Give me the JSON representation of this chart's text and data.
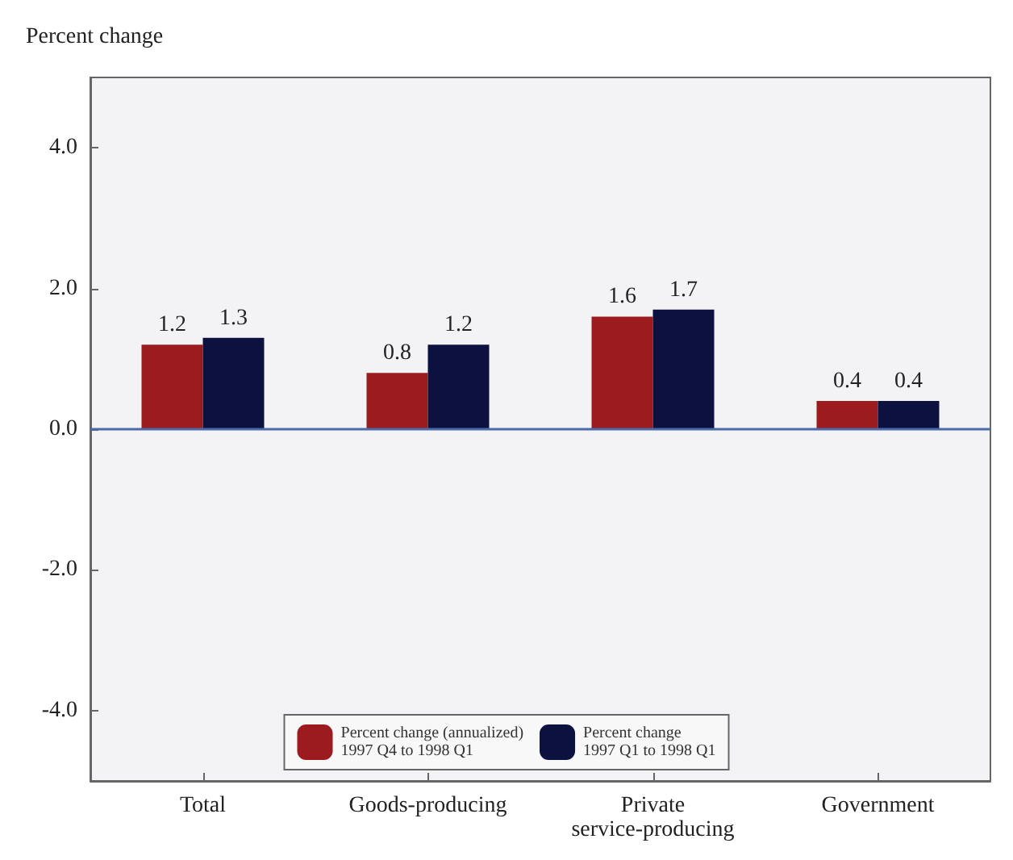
{
  "chart_data": {
    "type": "bar",
    "ylabel": "Percent change",
    "categories": [
      "Total",
      "Goods-producing",
      "Private\nservice-producing",
      "Government"
    ],
    "series": [
      {
        "name": "Percent change (annualized)\n1997 Q4 to 1998 Q1",
        "color": "#9b1b1f",
        "values": [
          1.2,
          0.8,
          1.6,
          0.4
        ]
      },
      {
        "name": "Percent change\n1997 Q1 to 1998 Q1",
        "color": "#0d1140",
        "values": [
          1.3,
          1.2,
          1.7,
          0.4
        ]
      }
    ],
    "ylim": [
      -5,
      5
    ],
    "yticks": [
      {
        "value": -4,
        "label": "-4.0"
      },
      {
        "value": -2,
        "label": "-2.0"
      },
      {
        "value": 0,
        "label": "0.0"
      },
      {
        "value": 2,
        "label": "2.0"
      },
      {
        "value": 4,
        "label": "4.0"
      }
    ],
    "ref_lines": [
      {
        "axis": "y",
        "value": 0,
        "color": "#4a6aa8"
      }
    ],
    "data_labels": true,
    "legend": "bottom",
    "grid": false
  }
}
